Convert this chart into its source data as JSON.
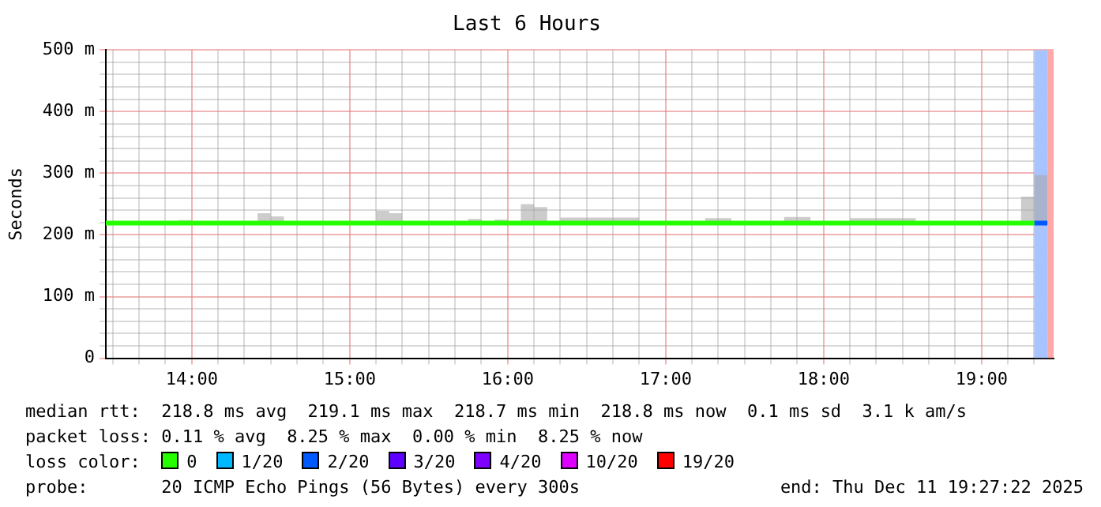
{
  "chart_data": {
    "type": "step",
    "title": "Last 6 Hours",
    "ylabel": "Seconds",
    "legend_title": "loss color:",
    "legend": "bottom",
    "grid": true,
    "marker": "none",
    "line_style": "solid",
    "xlim": [
      13.456,
      19.456
    ],
    "xticks": [
      {
        "value": 13.5,
        "label": null
      },
      {
        "value": 13.6667,
        "label": null
      },
      {
        "value": 13.8333,
        "label": null
      },
      {
        "value": 14,
        "label": "14:00"
      },
      {
        "value": 14.1667,
        "label": null
      },
      {
        "value": 14.3333,
        "label": null
      },
      {
        "value": 14.5,
        "label": null
      },
      {
        "value": 14.6667,
        "label": null
      },
      {
        "value": 14.8333,
        "label": null
      },
      {
        "value": 15,
        "label": "15:00"
      },
      {
        "value": 15.1667,
        "label": null
      },
      {
        "value": 15.3333,
        "label": null
      },
      {
        "value": 15.5,
        "label": null
      },
      {
        "value": 15.6667,
        "label": null
      },
      {
        "value": 15.8333,
        "label": null
      },
      {
        "value": 16,
        "label": "16:00"
      },
      {
        "value": 16.1667,
        "label": null
      },
      {
        "value": 16.3333,
        "label": null
      },
      {
        "value": 16.5,
        "label": null
      },
      {
        "value": 16.6667,
        "label": null
      },
      {
        "value": 16.8333,
        "label": null
      },
      {
        "value": 17,
        "label": "17:00"
      },
      {
        "value": 17.1667,
        "label": null
      },
      {
        "value": 17.3333,
        "label": null
      },
      {
        "value": 17.5,
        "label": null
      },
      {
        "value": 17.6667,
        "label": null
      },
      {
        "value": 17.8333,
        "label": null
      },
      {
        "value": 18,
        "label": "18:00"
      },
      {
        "value": 18.1667,
        "label": null
      },
      {
        "value": 18.3333,
        "label": null
      },
      {
        "value": 18.5,
        "label": null
      },
      {
        "value": 18.6667,
        "label": null
      },
      {
        "value": 18.8333,
        "label": null
      },
      {
        "value": 19,
        "label": "19:00"
      },
      {
        "value": 19.1667,
        "label": null
      },
      {
        "value": 19.3333,
        "label": null
      }
    ],
    "ylim": [
      0,
      500
    ],
    "yticks": [
      0,
      {
        "value": 20,
        "label": null
      },
      {
        "value": 40,
        "label": null
      },
      {
        "value": 60,
        "label": null
      },
      {
        "value": 80,
        "label": null
      },
      {
        "value": 100,
        "label": "100 m"
      },
      {
        "value": 120,
        "label": null
      },
      {
        "value": 140,
        "label": null
      },
      {
        "value": 160,
        "label": null
      },
      {
        "value": 180,
        "label": null
      },
      {
        "value": 200,
        "label": "200 m"
      },
      {
        "value": 220,
        "label": null
      },
      {
        "value": 240,
        "label": null
      },
      {
        "value": 260,
        "label": null
      },
      {
        "value": 280,
        "label": null
      },
      {
        "value": 300,
        "label": "300 m"
      },
      {
        "value": 320,
        "label": null
      },
      {
        "value": 340,
        "label": null
      },
      {
        "value": 360,
        "label": null
      },
      {
        "value": 380,
        "label": null
      },
      {
        "value": 400,
        "label": "400 m"
      },
      {
        "value": 420,
        "label": null
      },
      {
        "value": 440,
        "label": null
      },
      {
        "value": 460,
        "label": null
      },
      {
        "value": 480,
        "label": null
      },
      {
        "value": 500,
        "label": "500 m"
      }
    ],
    "bands": [
      {
        "axis": "x",
        "from": 19.3333,
        "to": 19.4167,
        "color": "#a8c4ff"
      },
      {
        "axis": "x",
        "from": 19.4167,
        "to": 19.456,
        "color": "#ffa8a8"
      }
    ],
    "series": [
      {
        "name": "0",
        "color": "#26ff00",
        "x": [
          13.456,
          13.9167,
          14,
          14.4167,
          14.5,
          14.5833,
          15.1667,
          15.25,
          15.3333,
          15.75,
          15.8333,
          15.9167,
          16,
          16.0833,
          16.1667,
          16.25,
          16.3333,
          16.8333,
          17.25,
          17.4167,
          17.75,
          17.9167,
          18.1667,
          18.5833,
          19.25,
          19.3333
        ],
        "values": [
          219,
          219,
          219,
          219,
          219,
          219,
          219,
          219,
          219,
          219,
          219,
          219,
          219,
          219,
          219,
          219,
          219,
          219,
          219,
          219,
          219,
          219,
          219,
          219,
          219,
          219
        ],
        "lower": [
          218,
          218,
          218,
          218,
          218,
          218,
          218,
          218,
          218,
          218,
          218,
          218,
          218,
          218,
          218,
          218,
          218,
          218,
          218,
          218,
          218,
          218,
          218,
          218,
          218,
          218
        ],
        "upper": [
          219,
          224,
          219,
          235,
          230,
          219,
          239,
          235,
          219,
          226,
          219,
          225,
          219,
          250,
          245,
          219,
          228,
          219,
          227,
          219,
          229,
          219,
          227,
          219,
          262,
          262
        ]
      },
      {
        "name": "1/20",
        "color": "#00b8ff"
      },
      {
        "name": "2/20",
        "color": "#0059ff",
        "x": [
          19.3333,
          19.4167
        ],
        "values": [
          219,
          219
        ],
        "lower": [
          218,
          218
        ],
        "upper": [
          297,
          297
        ]
      },
      {
        "name": "3/20",
        "color": "#5e00ff"
      },
      {
        "name": "4/20",
        "color": "#7e00ff"
      },
      {
        "name": "10/20",
        "color": "#dd00ff"
      },
      {
        "name": "19/20",
        "color": "#ff0000"
      }
    ],
    "annotations": [
      "median rtt:  218.8 ms avg  219.1 ms max  218.7 ms min  218.8 ms now  0.1 ms sd  3.1 k am/s",
      "packet loss: 0.11 % avg  8.25 % max  0.00 % min  8.25 % now",
      "probe:       20 ICMP Echo Pings (56 Bytes) every 300s",
      "end: Thu Dec 11 19:27:22 2025"
    ]
  }
}
